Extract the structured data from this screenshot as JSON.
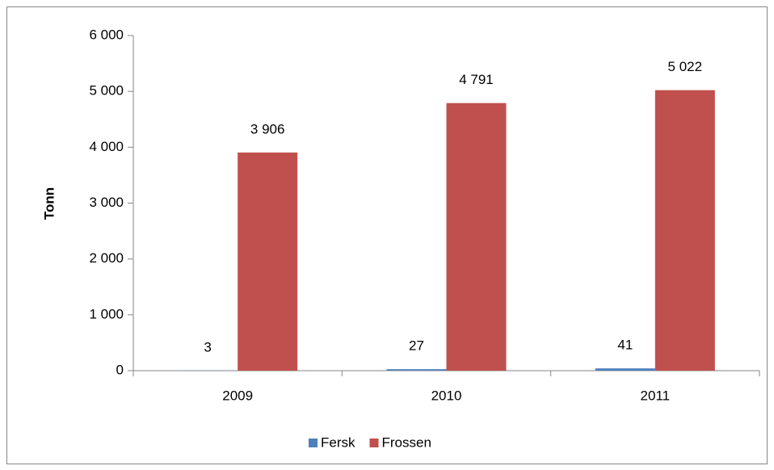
{
  "chart_data": {
    "type": "bar",
    "y_label": "Tonn",
    "categories": [
      "2009",
      "2010",
      "2011"
    ],
    "series": [
      {
        "name": "Fersk",
        "color": "#4f81bd",
        "values": [
          3,
          27,
          41
        ]
      },
      {
        "name": "Frossen",
        "color": "#c0504d",
        "values": [
          3906,
          4791,
          5022
        ],
        "value_labels": [
          "3 906",
          "4 791",
          "5 022"
        ]
      }
    ],
    "ylim": [
      0,
      6000
    ],
    "yticks": [
      0,
      {
        "value": 1000,
        "label": "1 000"
      },
      {
        "value": 2000,
        "label": "2 000"
      },
      {
        "value": 3000,
        "label": "3 000"
      },
      {
        "value": 4000,
        "label": "4 000"
      },
      {
        "value": 5000,
        "label": "5 000"
      },
      {
        "value": 6000,
        "label": "6 000"
      }
    ],
    "grid": false,
    "legend": "bottom"
  }
}
